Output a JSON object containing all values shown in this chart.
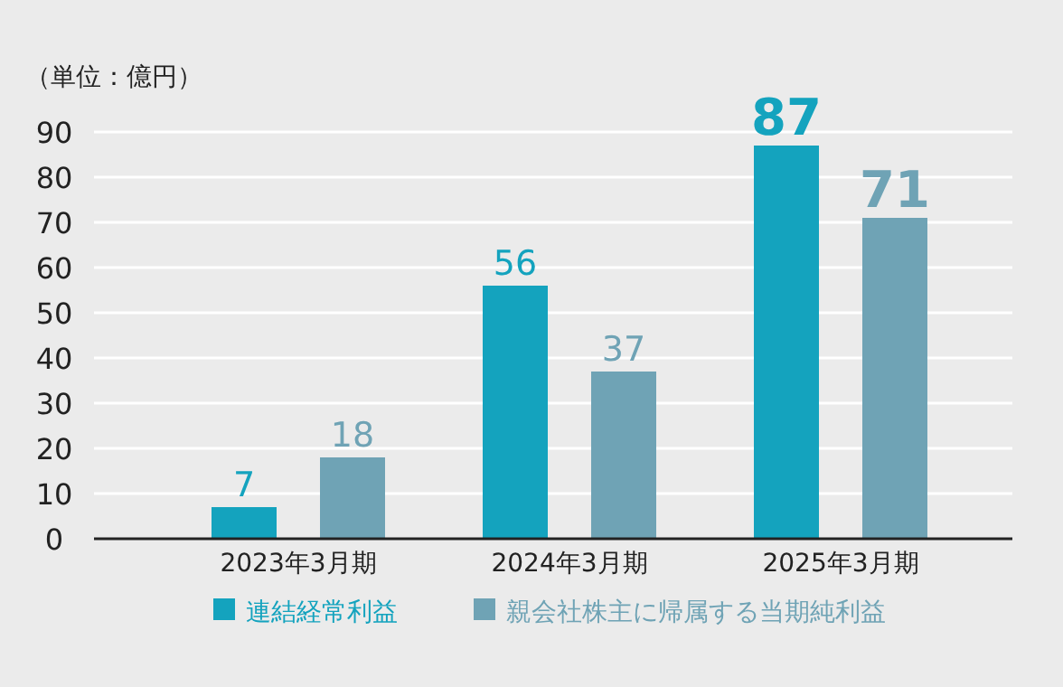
{
  "chart_data": {
    "type": "bar",
    "ylabel": "（単位：億円）",
    "categories": [
      "2023年3月期",
      "2024年3月期",
      "2025年3月期"
    ],
    "series": [
      {
        "name": "連結経常利益",
        "color": "#14a3be",
        "values": [
          7,
          56,
          87
        ]
      },
      {
        "name": "親会社株主に帰属する当期純利益",
        "color": "#6fa3b5",
        "values": [
          18,
          37,
          71
        ]
      }
    ],
    "ylim": [
      0,
      90
    ],
    "yticks": [
      0,
      10,
      20,
      30,
      40,
      50,
      60,
      70,
      80,
      90
    ],
    "grid": "y",
    "legend": "bottom",
    "data_labels": true
  }
}
